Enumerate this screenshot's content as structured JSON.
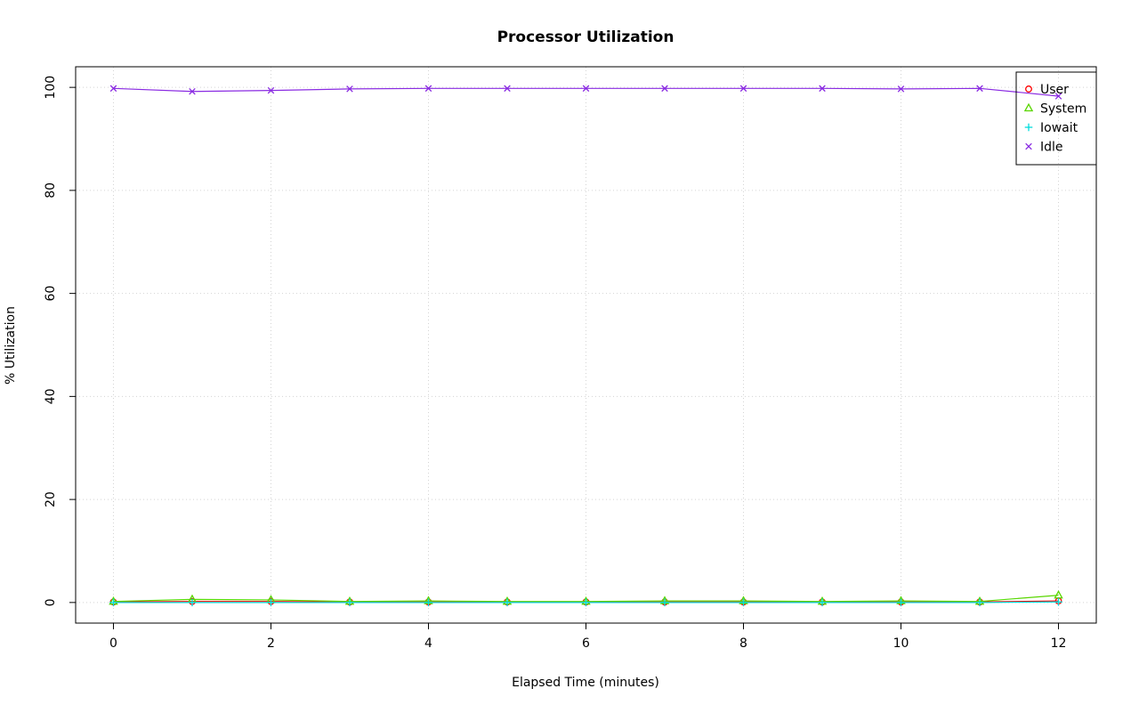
{
  "chart_data": {
    "type": "line",
    "title": "Processor Utilization",
    "xlabel": "Elapsed Time (minutes)",
    "ylabel": "% Utilization",
    "x": [
      0,
      1,
      2,
      3,
      4,
      5,
      6,
      7,
      8,
      9,
      10,
      11,
      12
    ],
    "xlim": [
      0,
      12
    ],
    "ylim": [
      0,
      100
    ],
    "xticks": [
      0,
      2,
      4,
      6,
      8,
      10,
      12
    ],
    "yticks": [
      0,
      20,
      40,
      60,
      80,
      100
    ],
    "grid": true,
    "grid_style": "dotted",
    "grid_color": "#d4d4d4",
    "legend_position": "top-right",
    "series": [
      {
        "name": "User",
        "color": "#ff0000",
        "marker": "circle",
        "values": [
          0.1,
          0.2,
          0.2,
          0.1,
          0.1,
          0.1,
          0.1,
          0.1,
          0.1,
          0.1,
          0.1,
          0.1,
          0.3
        ]
      },
      {
        "name": "System",
        "color": "#59d600",
        "marker": "triangle",
        "values": [
          0.2,
          0.6,
          0.5,
          0.2,
          0.3,
          0.2,
          0.2,
          0.3,
          0.3,
          0.2,
          0.3,
          0.2,
          1.4
        ]
      },
      {
        "name": "Iowait",
        "color": "#00dddd",
        "marker": "plus",
        "values": [
          0.0,
          0.0,
          0.0,
          0.0,
          0.0,
          0.0,
          0.0,
          0.0,
          0.0,
          0.0,
          0.0,
          0.0,
          0.1
        ]
      },
      {
        "name": "Idle",
        "color": "#8a2be2",
        "marker": "x",
        "values": [
          99.8,
          99.2,
          99.4,
          99.7,
          99.8,
          99.8,
          99.8,
          99.8,
          99.8,
          99.8,
          99.7,
          99.8,
          98.3
        ]
      }
    ]
  }
}
